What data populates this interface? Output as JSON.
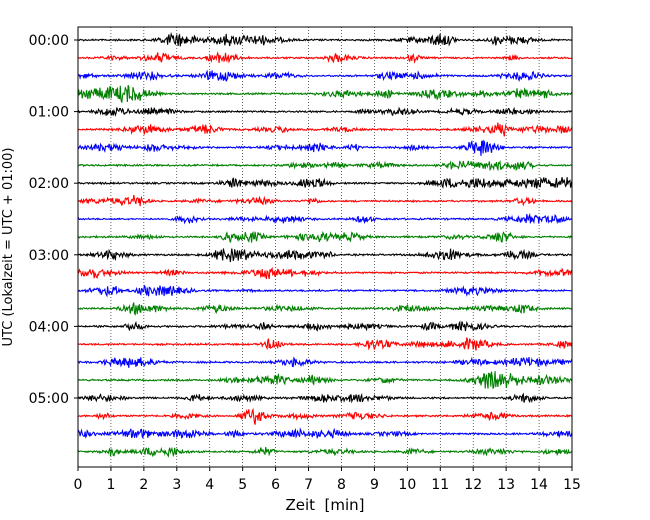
{
  "chart_data": {
    "type": "line",
    "title": "",
    "xlabel": "Zeit  [min]",
    "ylabel": "UTC (Lokalzeit = UTC + 01:00)",
    "xlim": [
      0,
      15
    ],
    "x_ticks": [
      "0",
      "1",
      "2",
      "3",
      "4",
      "5",
      "6",
      "7",
      "8",
      "9",
      "10",
      "11",
      "12",
      "13",
      "14",
      "15"
    ],
    "y_ticks": [
      "00:00",
      "01:00",
      "02:00",
      "03:00",
      "04:00",
      "05:00"
    ],
    "grid": "vertical dotted lines at each minute",
    "trace_interval_min": 15,
    "trace_colors": [
      "#000000",
      "#ff0000",
      "#0000ff",
      "#008000"
    ],
    "traces": [
      {
        "start": "00:00"
      },
      {
        "start": "00:15"
      },
      {
        "start": "00:30"
      },
      {
        "start": "00:45"
      },
      {
        "start": "01:00"
      },
      {
        "start": "01:15"
      },
      {
        "start": "01:30"
      },
      {
        "start": "01:45"
      },
      {
        "start": "02:00"
      },
      {
        "start": "02:15"
      },
      {
        "start": "02:30"
      },
      {
        "start": "02:45"
      },
      {
        "start": "03:00"
      },
      {
        "start": "03:15"
      },
      {
        "start": "03:30"
      },
      {
        "start": "03:45"
      },
      {
        "start": "04:00"
      },
      {
        "start": "04:15"
      },
      {
        "start": "04:30"
      },
      {
        "start": "04:45"
      },
      {
        "start": "05:00"
      },
      {
        "start": "05:15"
      },
      {
        "start": "05:30"
      },
      {
        "start": "05:45"
      }
    ]
  }
}
